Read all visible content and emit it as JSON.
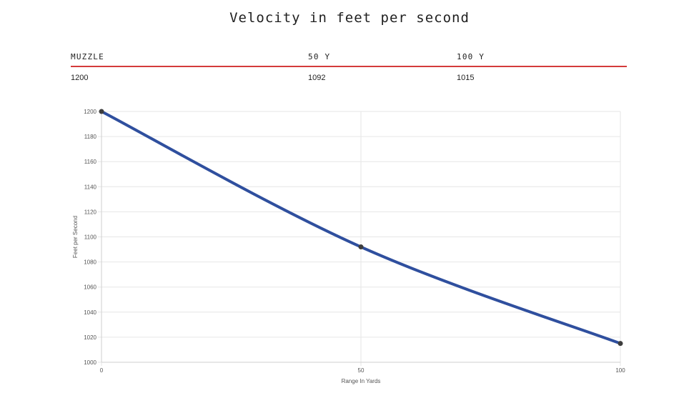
{
  "title": "Velocity in feet per second",
  "table": {
    "headers": [
      "MUZZLE",
      "50 Y",
      "100 Y"
    ],
    "values": [
      "1200",
      "1092",
      "1015"
    ]
  },
  "colors": {
    "divider": "#d43a3a",
    "line": "#2f4f9e",
    "point": "#3d3d3d",
    "grid": "#e6e6e6"
  },
  "chart_data": {
    "type": "line",
    "x": [
      0,
      50,
      100
    ],
    "series": [
      {
        "values": [
          1200,
          1092,
          1015
        ]
      }
    ],
    "xlabel": "Range In Yards",
    "ylabel": "Feet per Second",
    "xlim": [
      0,
      100
    ],
    "ylim": [
      1000,
      1200
    ],
    "xticks": [
      0,
      50,
      100
    ],
    "yticks": [
      1000,
      1020,
      1040,
      1060,
      1080,
      1100,
      1120,
      1140,
      1160,
      1180,
      1200
    ],
    "grid": true,
    "legend": "none"
  }
}
